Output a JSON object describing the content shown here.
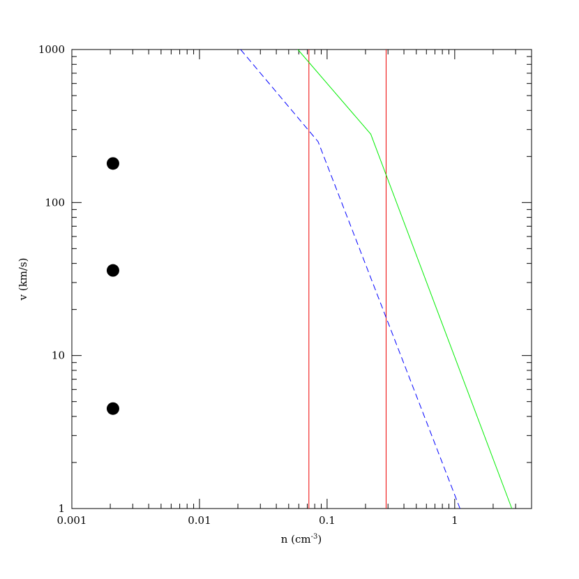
{
  "chart_data": {
    "type": "line",
    "xscale": "log",
    "yscale": "log",
    "xlim": [
      0.001,
      4
    ],
    "ylim": [
      1,
      1000
    ],
    "xlabel": "n (cm",
    "xlabel_sup": "-3",
    "xlabel_end": ")",
    "ylabel": "v (km/s)",
    "x_tick_labels": [
      {
        "value": 0.001,
        "label": "0.001"
      },
      {
        "value": 0.01,
        "label": "0.01"
      },
      {
        "value": 0.1,
        "label": "0.1"
      },
      {
        "value": 1,
        "label": "1"
      }
    ],
    "y_tick_labels": [
      {
        "value": 1,
        "label": "1"
      },
      {
        "value": 10,
        "label": "10"
      },
      {
        "value": 100,
        "label": "100"
      },
      {
        "value": 1000,
        "label": "1000"
      }
    ],
    "series": [
      {
        "style": "dashed",
        "color": "#0000ff",
        "points": [
          [
            0.021,
            1000
          ],
          [
            0.085,
            250
          ],
          [
            1.1,
            1
          ]
        ]
      },
      {
        "style": "solid",
        "color": "#00ee00",
        "points": [
          [
            0.059,
            1000
          ],
          [
            0.22,
            280
          ],
          [
            2.8,
            1
          ]
        ]
      }
    ],
    "vlines": [
      {
        "x": 0.072,
        "color": "#ee0000"
      },
      {
        "x": 0.29,
        "color": "#ee0000"
      }
    ],
    "scatter": {
      "color": "#000000",
      "points": [
        [
          0.0021,
          180
        ],
        [
          0.0021,
          36
        ],
        [
          0.0021,
          4.5
        ]
      ]
    },
    "grid": false
  }
}
